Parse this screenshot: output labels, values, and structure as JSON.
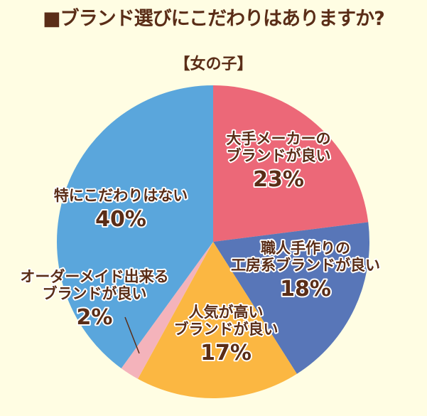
{
  "title": "■ブランド選びにこだわりはありますか?",
  "subtitle": "【女の子】",
  "chart_data": {
    "type": "pie",
    "title": "■ブランド選びにこだわりはありますか?",
    "subtitle": "【女の子】",
    "slices": [
      {
        "label_lines": [
          "大手メーカーの",
          "ブランドが良い"
        ],
        "value": 23,
        "display": "23%",
        "color": "#ec6878"
      },
      {
        "label_lines": [
          "職人手作りの",
          "工房系ブランドが良い"
        ],
        "value": 18,
        "display": "18%",
        "color": "#5876b8"
      },
      {
        "label_lines": [
          "人気が高い",
          "ブランドが良い"
        ],
        "value": 17,
        "display": "17%",
        "color": "#fbb742"
      },
      {
        "label_lines": [
          "オーダーメイド出来る",
          "ブランドが良い"
        ],
        "value": 2,
        "display": "2%",
        "color": "#f4b3bb"
      },
      {
        "label_lines": [
          "特にこだわりはない"
        ],
        "value": 40,
        "display": "40%",
        "color": "#5aa6dc"
      }
    ],
    "start": "12 o'clock",
    "direction": "clockwise",
    "legend": "none"
  }
}
